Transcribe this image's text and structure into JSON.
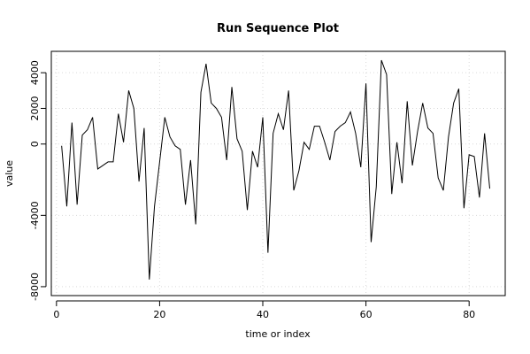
{
  "chart_data": {
    "type": "line",
    "title": "Run Sequence Plot",
    "xlabel": "time or index",
    "ylabel": "value",
    "xlim": [
      -1,
      87
    ],
    "ylim": [
      -8500,
      5200
    ],
    "x_ticks": [
      0,
      20,
      40,
      60,
      80
    ],
    "y_ticks": [
      -8000,
      -4000,
      0,
      2000,
      4000
    ],
    "grid": true,
    "series": [
      {
        "x": [
          1,
          2,
          3,
          4,
          5,
          6,
          7,
          8,
          9,
          10,
          11,
          12,
          13,
          14,
          15,
          16,
          17,
          18,
          19,
          20,
          21,
          22,
          23,
          24,
          25,
          26,
          27,
          28,
          29,
          30,
          31,
          32,
          33,
          34,
          35,
          36,
          37,
          38,
          39,
          40,
          41,
          42,
          43,
          44,
          45,
          46,
          47,
          48,
          49,
          50,
          51,
          52,
          53,
          54,
          55,
          56,
          57,
          58,
          59,
          60,
          61,
          62,
          63,
          64,
          65,
          66,
          67,
          68,
          69,
          70,
          71,
          72,
          73,
          74,
          75,
          76,
          77,
          78,
          79,
          80,
          81,
          82,
          83,
          84
        ],
        "values": [
          -100,
          -3500,
          1200,
          -3400,
          500,
          800,
          1500,
          -1400,
          -1200,
          -1000,
          -1000,
          1700,
          100,
          3000,
          2000,
          -2100,
          900,
          -7600,
          -3500,
          -1000,
          1500,
          400,
          -100,
          -300,
          -3400,
          -900,
          -4500,
          2900,
          4500,
          2300,
          2000,
          1500,
          -900,
          3200,
          300,
          -400,
          -3700,
          -400,
          -1300,
          1500,
          -6100,
          600,
          1700,
          800,
          3000,
          -2600,
          -1500,
          100,
          -300,
          1000,
          1000,
          100,
          -900,
          700,
          1000,
          1200,
          1800,
          600,
          -1300,
          3400,
          -5500,
          -2400,
          4700,
          3900,
          -2800,
          100,
          -2200,
          2400,
          -1200,
          700,
          2300,
          900,
          600,
          -1900,
          -2600,
          400,
          2300,
          3100,
          -3600,
          -600,
          -700,
          -3000,
          600,
          -2500
        ]
      }
    ]
  }
}
